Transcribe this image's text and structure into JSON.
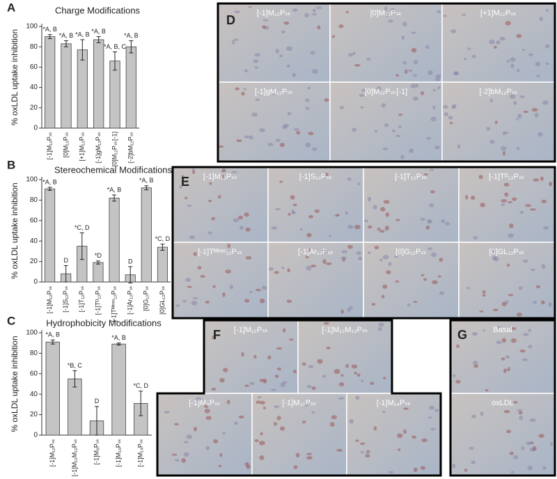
{
  "chart_data": [
    {
      "type": "bar",
      "panel": "A",
      "title": "Charge Modifications",
      "ylabel": "% oxLDL uptake inhibition",
      "categories": [
        "[-1]M₁₂Pₛₖ",
        "[0]M₁₂Pₛₖ",
        "[+1]M₁₂Pₛₖ",
        "[-1]gM₁₂Pₛₖ",
        "[0]M₁₂Pₛₖ[-1]",
        "[-2]bM₁₂Pₛₖ"
      ],
      "values": [
        90,
        83,
        77,
        87,
        66,
        80
      ],
      "errors": [
        2,
        3,
        10,
        3,
        9,
        6
      ],
      "annotations": [
        "*A, B",
        "*A, B",
        "*A, B",
        "*A, B",
        "*A, B, C",
        "*A, B"
      ],
      "color": "#c4c4c4",
      "ylim": [
        0,
        100
      ],
      "yticks": [
        0,
        20,
        40,
        60,
        80,
        100
      ]
    },
    {
      "type": "bar",
      "panel": "B",
      "title": "Stereochemical Modifications",
      "ylabel": "% oxLDL uptake inhibition",
      "categories": [
        "[-1]M₁₂Pₛₖ",
        "[-1]S₁₂Pₛₖ",
        "[-1]T₁₂Pₛₖ",
        "[-1]Tᴰ₁₂Pₛₖ",
        "[-1]Tᴹᵉˢᵒ₁₂Pₛₖ",
        "[-1]Ar₁₂Pₛₖ",
        "[0]G₁₂Pₛₖ",
        "[0]GL₁₂Pₛₖ"
      ],
      "values": [
        91,
        8,
        35,
        19,
        82,
        7,
        92,
        34
      ],
      "errors": [
        1.5,
        8,
        13,
        1.5,
        3,
        8,
        2,
        3
      ],
      "annotations": [
        "*A, B",
        "D",
        "*C, D",
        "*D",
        "*A, B",
        "D",
        "*A, B",
        "*C, D"
      ],
      "color": "#c4c4c4",
      "ylim": [
        0,
        100
      ],
      "yticks": [
        0,
        20,
        40,
        60,
        80,
        100
      ]
    },
    {
      "type": "bar",
      "panel": "C",
      "title": "Hydrophobicity Modifications",
      "ylabel": "% oxLDL uptake inhibition",
      "categories": [
        "[-1]M₁₂Pₛₖ",
        "[-1]M₁₂M₁₂Pₛₖ",
        "[-1]M₆Pₛₖ",
        "[-1]M₁₀Pₛₖ",
        "[-1]M₁₄Pₛₖ"
      ],
      "values": [
        91,
        55,
        14,
        89,
        31
      ],
      "errors": [
        2,
        8,
        14,
        1,
        12
      ],
      "annotations": [
        "*A, B",
        "*B, C",
        "D",
        "*A, B",
        "*C, D"
      ],
      "color": "#c4c4c4",
      "ylim": [
        0,
        100
      ],
      "yticks": [
        0,
        20,
        40,
        60,
        80,
        100
      ]
    }
  ],
  "panels": [
    {
      "letter": "D",
      "labels": [
        "[-1]M₁₂Pₛₖ",
        "[0]M₁₂Pₛₖ",
        "[+1]M₁₂Pₛₖ",
        "[-1]gM₁₂Pₛₖ",
        "[0]M₁₂Pₛₖ[-1]",
        "[-2]bM₁₂Pₛₖ"
      ]
    },
    {
      "letter": "E",
      "labels": [
        "[-1]M₁₂Pₛₖ",
        "[-1]S₁₂Pₛₖ",
        "[-1]T₁₂Pₛₖ",
        "[-1]Tᴰ₁₂Pₛₖ",
        "[-1]Tᴹᵉˢᵒ₁₂Pₛₖ",
        "[-1]Ar₁₂Pₛₖ",
        "[0]G₁₂Pₛₖ",
        "[0]GL₁₂Pₛₖ"
      ]
    },
    {
      "letter": "F",
      "labels": [
        "[-1]M₁₂Pₛₖ",
        "[-1]M₁₂M₁₂Pₛₖ",
        "[-1]M₆Pₛₖ",
        "[-1]M₁₀Pₛₖ",
        "[-1]M₁₄Pₛₖ"
      ]
    },
    {
      "letter": "G",
      "labels": [
        "Basal",
        "oxLDL"
      ]
    }
  ]
}
